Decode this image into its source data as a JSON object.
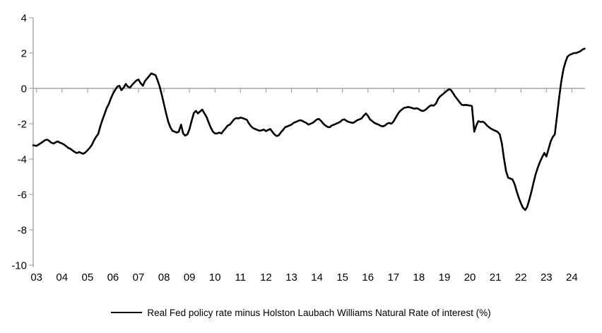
{
  "colors": {
    "line": "#000000",
    "axis": "#a6a6a6",
    "text": "#000000",
    "background": "#ffffff"
  },
  "legend": {
    "label": "Real Fed policy rate minus Holston Laubach Williams Natural Rate of interest (%)"
  },
  "chart_data": {
    "type": "line",
    "title": "",
    "xlabel": "",
    "ylabel": "",
    "ylim": [
      -10,
      4
    ],
    "xlim_years": [
      2003,
      2024.5
    ],
    "grid": "zero-line-only",
    "legend_position": "bottom",
    "y_ticks": [
      4,
      2,
      0,
      -2,
      -4,
      -6,
      -8,
      -10
    ],
    "x_ticks": [
      "03",
      "04",
      "05",
      "06",
      "07",
      "08",
      "09",
      "10",
      "11",
      "12",
      "13",
      "14",
      "15",
      "16",
      "17",
      "18",
      "19",
      "20",
      "21",
      "22",
      "23",
      "24"
    ],
    "series": [
      {
        "name": "Real Fed policy rate minus Holston Laubach Williams Natural Rate of interest (%)",
        "color": "#000000",
        "points": [
          [
            2002.87,
            -3.22
          ],
          [
            2003.0,
            -3.25
          ],
          [
            2003.08,
            -3.18
          ],
          [
            2003.17,
            -3.1
          ],
          [
            2003.25,
            -3.02
          ],
          [
            2003.33,
            -2.93
          ],
          [
            2003.42,
            -2.9
          ],
          [
            2003.5,
            -2.97
          ],
          [
            2003.58,
            -3.07
          ],
          [
            2003.67,
            -3.12
          ],
          [
            2003.75,
            -3.05
          ],
          [
            2003.83,
            -3.0
          ],
          [
            2003.92,
            -3.07
          ],
          [
            2004.0,
            -3.12
          ],
          [
            2004.08,
            -3.18
          ],
          [
            2004.17,
            -3.28
          ],
          [
            2004.25,
            -3.37
          ],
          [
            2004.33,
            -3.42
          ],
          [
            2004.42,
            -3.52
          ],
          [
            2004.5,
            -3.6
          ],
          [
            2004.58,
            -3.66
          ],
          [
            2004.67,
            -3.6
          ],
          [
            2004.75,
            -3.65
          ],
          [
            2004.83,
            -3.7
          ],
          [
            2004.92,
            -3.62
          ],
          [
            2005.0,
            -3.5
          ],
          [
            2005.08,
            -3.38
          ],
          [
            2005.17,
            -3.2
          ],
          [
            2005.25,
            -2.95
          ],
          [
            2005.33,
            -2.75
          ],
          [
            2005.42,
            -2.58
          ],
          [
            2005.5,
            -2.15
          ],
          [
            2005.58,
            -1.8
          ],
          [
            2005.67,
            -1.45
          ],
          [
            2005.75,
            -1.12
          ],
          [
            2005.83,
            -0.9
          ],
          [
            2005.92,
            -0.55
          ],
          [
            2006.0,
            -0.3
          ],
          [
            2006.08,
            -0.1
          ],
          [
            2006.17,
            0.1
          ],
          [
            2006.25,
            0.15
          ],
          [
            2006.33,
            -0.1
          ],
          [
            2006.42,
            0.05
          ],
          [
            2006.5,
            0.25
          ],
          [
            2006.58,
            0.1
          ],
          [
            2006.67,
            0.05
          ],
          [
            2006.75,
            0.2
          ],
          [
            2006.83,
            0.32
          ],
          [
            2006.92,
            0.45
          ],
          [
            2007.0,
            0.5
          ],
          [
            2007.08,
            0.3
          ],
          [
            2007.17,
            0.15
          ],
          [
            2007.25,
            0.4
          ],
          [
            2007.33,
            0.55
          ],
          [
            2007.42,
            0.7
          ],
          [
            2007.5,
            0.85
          ],
          [
            2007.58,
            0.8
          ],
          [
            2007.67,
            0.75
          ],
          [
            2007.75,
            0.45
          ],
          [
            2007.83,
            0.1
          ],
          [
            2007.92,
            -0.4
          ],
          [
            2008.0,
            -0.9
          ],
          [
            2008.08,
            -1.4
          ],
          [
            2008.17,
            -1.9
          ],
          [
            2008.25,
            -2.2
          ],
          [
            2008.33,
            -2.4
          ],
          [
            2008.42,
            -2.45
          ],
          [
            2008.5,
            -2.5
          ],
          [
            2008.58,
            -2.45
          ],
          [
            2008.67,
            -2.05
          ],
          [
            2008.75,
            -2.55
          ],
          [
            2008.83,
            -2.67
          ],
          [
            2008.92,
            -2.6
          ],
          [
            2009.0,
            -2.3
          ],
          [
            2009.08,
            -1.85
          ],
          [
            2009.17,
            -1.4
          ],
          [
            2009.25,
            -1.27
          ],
          [
            2009.33,
            -1.42
          ],
          [
            2009.42,
            -1.3
          ],
          [
            2009.5,
            -1.2
          ],
          [
            2009.58,
            -1.4
          ],
          [
            2009.67,
            -1.62
          ],
          [
            2009.75,
            -1.92
          ],
          [
            2009.83,
            -2.2
          ],
          [
            2009.92,
            -2.45
          ],
          [
            2010.0,
            -2.55
          ],
          [
            2010.08,
            -2.55
          ],
          [
            2010.17,
            -2.5
          ],
          [
            2010.25,
            -2.55
          ],
          [
            2010.33,
            -2.4
          ],
          [
            2010.42,
            -2.25
          ],
          [
            2010.5,
            -2.1
          ],
          [
            2010.58,
            -2.05
          ],
          [
            2010.67,
            -1.9
          ],
          [
            2010.75,
            -1.75
          ],
          [
            2010.83,
            -1.68
          ],
          [
            2010.92,
            -1.7
          ],
          [
            2011.0,
            -1.65
          ],
          [
            2011.08,
            -1.68
          ],
          [
            2011.17,
            -1.73
          ],
          [
            2011.25,
            -1.78
          ],
          [
            2011.33,
            -1.98
          ],
          [
            2011.42,
            -2.15
          ],
          [
            2011.5,
            -2.25
          ],
          [
            2011.58,
            -2.3
          ],
          [
            2011.67,
            -2.35
          ],
          [
            2011.75,
            -2.4
          ],
          [
            2011.83,
            -2.37
          ],
          [
            2011.92,
            -2.33
          ],
          [
            2012.0,
            -2.42
          ],
          [
            2012.08,
            -2.35
          ],
          [
            2012.17,
            -2.3
          ],
          [
            2012.25,
            -2.45
          ],
          [
            2012.33,
            -2.6
          ],
          [
            2012.42,
            -2.7
          ],
          [
            2012.5,
            -2.65
          ],
          [
            2012.58,
            -2.5
          ],
          [
            2012.67,
            -2.35
          ],
          [
            2012.75,
            -2.2
          ],
          [
            2012.83,
            -2.15
          ],
          [
            2012.92,
            -2.1
          ],
          [
            2013.0,
            -2.05
          ],
          [
            2013.08,
            -1.95
          ],
          [
            2013.17,
            -1.9
          ],
          [
            2013.25,
            -1.85
          ],
          [
            2013.33,
            -1.8
          ],
          [
            2013.42,
            -1.83
          ],
          [
            2013.5,
            -1.9
          ],
          [
            2013.58,
            -1.95
          ],
          [
            2013.67,
            -2.05
          ],
          [
            2013.75,
            -2.0
          ],
          [
            2013.83,
            -1.95
          ],
          [
            2013.92,
            -1.85
          ],
          [
            2014.0,
            -1.75
          ],
          [
            2014.08,
            -1.73
          ],
          [
            2014.17,
            -1.85
          ],
          [
            2014.25,
            -2.0
          ],
          [
            2014.33,
            -2.1
          ],
          [
            2014.42,
            -2.18
          ],
          [
            2014.5,
            -2.2
          ],
          [
            2014.58,
            -2.1
          ],
          [
            2014.67,
            -2.05
          ],
          [
            2014.75,
            -2.0
          ],
          [
            2014.83,
            -1.95
          ],
          [
            2014.92,
            -1.88
          ],
          [
            2015.0,
            -1.78
          ],
          [
            2015.08,
            -1.75
          ],
          [
            2015.17,
            -1.85
          ],
          [
            2015.25,
            -1.9
          ],
          [
            2015.33,
            -1.93
          ],
          [
            2015.42,
            -1.95
          ],
          [
            2015.5,
            -1.88
          ],
          [
            2015.58,
            -1.8
          ],
          [
            2015.67,
            -1.75
          ],
          [
            2015.75,
            -1.7
          ],
          [
            2015.83,
            -1.55
          ],
          [
            2015.92,
            -1.42
          ],
          [
            2016.0,
            -1.55
          ],
          [
            2016.08,
            -1.75
          ],
          [
            2016.17,
            -1.85
          ],
          [
            2016.25,
            -1.95
          ],
          [
            2016.33,
            -2.0
          ],
          [
            2016.42,
            -2.05
          ],
          [
            2016.5,
            -2.12
          ],
          [
            2016.58,
            -2.15
          ],
          [
            2016.67,
            -2.1
          ],
          [
            2016.75,
            -2.0
          ],
          [
            2016.83,
            -1.95
          ],
          [
            2016.92,
            -2.0
          ],
          [
            2017.0,
            -1.88
          ],
          [
            2017.08,
            -1.68
          ],
          [
            2017.17,
            -1.45
          ],
          [
            2017.25,
            -1.3
          ],
          [
            2017.33,
            -1.2
          ],
          [
            2017.42,
            -1.1
          ],
          [
            2017.5,
            -1.08
          ],
          [
            2017.58,
            -1.05
          ],
          [
            2017.67,
            -1.08
          ],
          [
            2017.75,
            -1.12
          ],
          [
            2017.83,
            -1.15
          ],
          [
            2017.92,
            -1.12
          ],
          [
            2018.0,
            -1.18
          ],
          [
            2018.08,
            -1.25
          ],
          [
            2018.17,
            -1.28
          ],
          [
            2018.25,
            -1.22
          ],
          [
            2018.33,
            -1.12
          ],
          [
            2018.42,
            -1.0
          ],
          [
            2018.5,
            -0.95
          ],
          [
            2018.58,
            -0.98
          ],
          [
            2018.67,
            -0.85
          ],
          [
            2018.75,
            -0.6
          ],
          [
            2018.83,
            -0.45
          ],
          [
            2018.92,
            -0.35
          ],
          [
            2019.0,
            -0.25
          ],
          [
            2019.08,
            -0.15
          ],
          [
            2019.17,
            -0.05
          ],
          [
            2019.25,
            -0.08
          ],
          [
            2019.33,
            -0.25
          ],
          [
            2019.42,
            -0.45
          ],
          [
            2019.5,
            -0.6
          ],
          [
            2019.58,
            -0.75
          ],
          [
            2019.67,
            -0.92
          ],
          [
            2019.75,
            -0.95
          ],
          [
            2019.83,
            -0.93
          ],
          [
            2019.92,
            -0.95
          ],
          [
            2020.0,
            -0.97
          ],
          [
            2020.08,
            -1.0
          ],
          [
            2020.17,
            -2.45
          ],
          [
            2020.25,
            -2.1
          ],
          [
            2020.33,
            -1.85
          ],
          [
            2020.42,
            -1.9
          ],
          [
            2020.5,
            -1.88
          ],
          [
            2020.58,
            -1.95
          ],
          [
            2020.67,
            -2.1
          ],
          [
            2020.75,
            -2.2
          ],
          [
            2020.83,
            -2.28
          ],
          [
            2020.92,
            -2.35
          ],
          [
            2021.0,
            -2.4
          ],
          [
            2021.08,
            -2.45
          ],
          [
            2021.17,
            -2.6
          ],
          [
            2021.25,
            -3.1
          ],
          [
            2021.33,
            -3.9
          ],
          [
            2021.42,
            -4.7
          ],
          [
            2021.5,
            -5.05
          ],
          [
            2021.58,
            -5.1
          ],
          [
            2021.67,
            -5.15
          ],
          [
            2021.75,
            -5.4
          ],
          [
            2021.83,
            -5.8
          ],
          [
            2021.92,
            -6.2
          ],
          [
            2022.0,
            -6.5
          ],
          [
            2022.08,
            -6.75
          ],
          [
            2022.17,
            -6.88
          ],
          [
            2022.25,
            -6.7
          ],
          [
            2022.33,
            -6.3
          ],
          [
            2022.42,
            -5.8
          ],
          [
            2022.5,
            -5.3
          ],
          [
            2022.58,
            -4.85
          ],
          [
            2022.67,
            -4.45
          ],
          [
            2022.75,
            -4.15
          ],
          [
            2022.83,
            -3.9
          ],
          [
            2022.92,
            -3.65
          ],
          [
            2023.0,
            -3.85
          ],
          [
            2023.08,
            -3.45
          ],
          [
            2023.17,
            -3.0
          ],
          [
            2023.25,
            -2.75
          ],
          [
            2023.33,
            -2.6
          ],
          [
            2023.42,
            -1.5
          ],
          [
            2023.5,
            -0.55
          ],
          [
            2023.58,
            0.35
          ],
          [
            2023.67,
            1.1
          ],
          [
            2023.75,
            1.5
          ],
          [
            2023.83,
            1.8
          ],
          [
            2023.92,
            1.9
          ],
          [
            2024.0,
            1.95
          ],
          [
            2024.08,
            2.0
          ],
          [
            2024.17,
            2.0
          ],
          [
            2024.25,
            2.05
          ],
          [
            2024.33,
            2.1
          ],
          [
            2024.42,
            2.2
          ],
          [
            2024.5,
            2.25
          ]
        ]
      }
    ]
  }
}
